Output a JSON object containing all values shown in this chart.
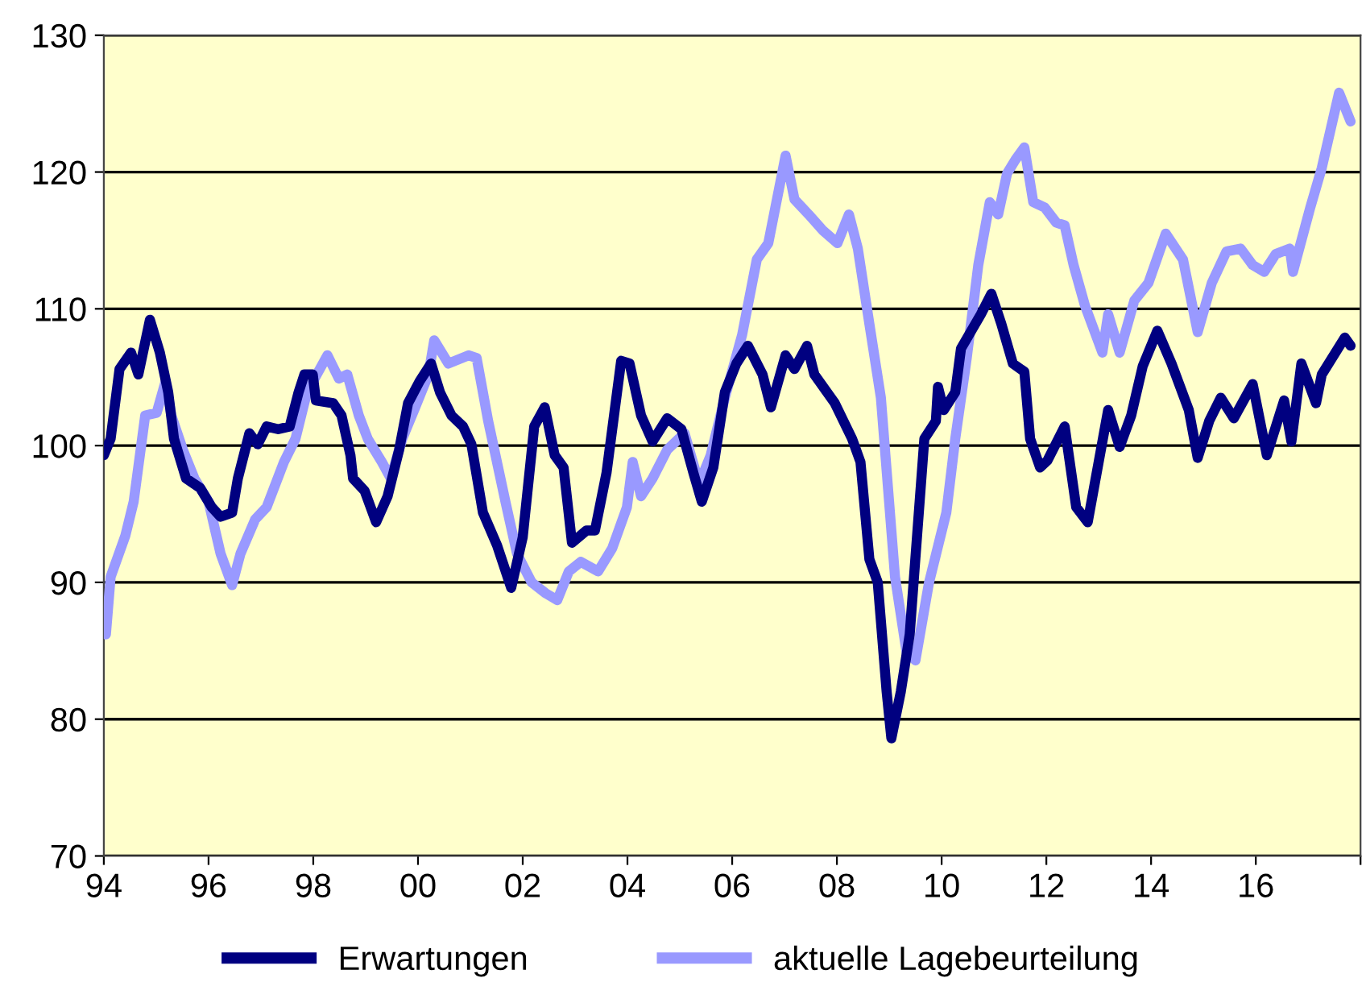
{
  "chart_data": {
    "type": "line",
    "xlim": [
      1994,
      2018
    ],
    "ylim": [
      70,
      130
    ],
    "xticks": [
      {
        "value": 1994,
        "label": "94"
      },
      {
        "value": 1996,
        "label": "96"
      },
      {
        "value": 1998,
        "label": "98"
      },
      {
        "value": 2000,
        "label": "00"
      },
      {
        "value": 2002,
        "label": "02"
      },
      {
        "value": 2004,
        "label": "04"
      },
      {
        "value": 2006,
        "label": "06"
      },
      {
        "value": 2008,
        "label": "08"
      },
      {
        "value": 2010,
        "label": "10"
      },
      {
        "value": 2012,
        "label": "12"
      },
      {
        "value": 2014,
        "label": "14"
      },
      {
        "value": 2016,
        "label": "16"
      },
      {
        "value": 2018,
        "label": null
      }
    ],
    "yticks": [
      70,
      80,
      90,
      100,
      110,
      120,
      130
    ],
    "grid": "y",
    "legend": "bottom",
    "marker": "none",
    "line_style": "solid",
    "series": [
      {
        "name": "Erwartungen",
        "color": "#000080",
        "x": [
          1994.0,
          1994.13,
          1994.3,
          1994.52,
          1994.66,
          1994.88,
          1995.07,
          1995.23,
          1995.34,
          1995.57,
          1995.84,
          1996.06,
          1996.23,
          1996.45,
          1996.56,
          1996.78,
          1996.94,
          1997.11,
          1997.33,
          1997.55,
          1997.72,
          1997.83,
          1997.99,
          1998.05,
          1998.38,
          1998.54,
          1998.71,
          1998.76,
          1998.98,
          1999.2,
          1999.42,
          1999.64,
          1999.81,
          2000.03,
          2000.25,
          2000.42,
          2000.64,
          2000.86,
          2001.02,
          2001.24,
          2001.51,
          2001.78,
          2002.0,
          2002.22,
          2002.42,
          2002.61,
          2002.78,
          2002.94,
          2003.22,
          2003.38,
          2003.6,
          2003.88,
          2004.04,
          2004.26,
          2004.48,
          2004.76,
          2005.03,
          2005.26,
          2005.42,
          2005.64,
          2005.86,
          2006.08,
          2006.3,
          2006.58,
          2006.74,
          2007.02,
          2007.19,
          2007.43,
          2007.57,
          2007.96,
          2008.29,
          2008.45,
          2008.62,
          2008.78,
          2008.95,
          2009.04,
          2009.22,
          2009.39,
          2009.67,
          2009.89,
          2009.93,
          2010.04,
          2010.26,
          2010.37,
          2010.75,
          2010.95,
          2011.14,
          2011.36,
          2011.58,
          2011.69,
          2011.88,
          2012.02,
          2012.35,
          2012.57,
          2012.79,
          2013.18,
          2013.4,
          2013.62,
          2013.84,
          2014.12,
          2014.39,
          2014.72,
          2014.89,
          2015.11,
          2015.33,
          2015.58,
          2015.94,
          2016.21,
          2016.54,
          2016.68,
          2016.87,
          2017.15,
          2017.26,
          2017.7,
          2017.81
        ],
        "values": [
          99.3,
          100.5,
          105.6,
          106.8,
          105.2,
          109.2,
          106.8,
          103.9,
          100.5,
          97.6,
          96.9,
          95.5,
          94.8,
          95.1,
          97.6,
          100.9,
          100.1,
          101.4,
          101.2,
          101.4,
          103.9,
          105.2,
          105.2,
          103.3,
          103.1,
          102.2,
          99.3,
          97.6,
          96.7,
          94.4,
          96.3,
          99.7,
          103.1,
          104.7,
          106.0,
          103.9,
          102.2,
          101.4,
          100.1,
          95.1,
          92.7,
          89.6,
          93.3,
          101.4,
          102.8,
          99.3,
          98.4,
          92.9,
          93.8,
          93.8,
          98.0,
          106.2,
          106.0,
          102.2,
          100.3,
          102.0,
          101.2,
          98.0,
          95.9,
          98.4,
          103.9,
          106.0,
          107.3,
          105.2,
          102.8,
          106.6,
          105.6,
          107.3,
          105.2,
          103.1,
          100.5,
          98.8,
          91.7,
          90.0,
          82.0,
          78.6,
          82.0,
          86.2,
          100.5,
          101.8,
          104.3,
          102.6,
          103.9,
          107.1,
          109.6,
          111.1,
          108.9,
          106.0,
          105.4,
          100.5,
          98.4,
          98.9,
          101.4,
          95.5,
          94.4,
          102.6,
          99.9,
          102.2,
          105.8,
          108.4,
          106.0,
          102.6,
          99.1,
          101.8,
          103.5,
          102.0,
          104.5,
          99.3,
          103.3,
          100.3,
          106.0,
          103.1,
          105.2,
          107.9,
          107.3
        ]
      },
      {
        "name": "aktuelle Lagebeurteilung",
        "color": "#9999ff",
        "x": [
          1994.04,
          1994.13,
          1994.41,
          1994.57,
          1994.79,
          1995.01,
          1995.18,
          1995.29,
          1995.51,
          1995.73,
          1996.0,
          1996.23,
          1996.45,
          1996.61,
          1996.89,
          1997.11,
          1997.44,
          1997.66,
          1997.88,
          1998.27,
          1998.49,
          1998.65,
          1998.87,
          1999.04,
          1999.31,
          1999.48,
          1999.7,
          1999.98,
          2000.2,
          2000.31,
          2000.58,
          2000.97,
          2001.12,
          2001.34,
          2001.67,
          2001.89,
          2002.17,
          2002.44,
          2002.66,
          2002.88,
          2003.11,
          2003.44,
          2003.71,
          2003.99,
          2004.1,
          2004.26,
          2004.48,
          2004.76,
          2005.09,
          2005.37,
          2005.59,
          2005.86,
          2006.19,
          2006.47,
          2006.69,
          2007.02,
          2007.19,
          2007.46,
          2007.74,
          2008.01,
          2008.23,
          2008.4,
          2008.62,
          2008.84,
          2009.11,
          2009.33,
          2009.5,
          2009.76,
          2010.09,
          2010.26,
          2010.48,
          2010.7,
          2010.92,
          2011.08,
          2011.25,
          2011.41,
          2011.58,
          2011.75,
          2011.97,
          2012.19,
          2012.35,
          2012.52,
          2012.74,
          2013.07,
          2013.18,
          2013.4,
          2013.68,
          2013.95,
          2014.28,
          2014.61,
          2014.89,
          2015.16,
          2015.44,
          2015.71,
          2015.94,
          2016.16,
          2016.38,
          2016.65,
          2016.71,
          2017.04,
          2017.26,
          2017.59,
          2017.81
        ],
        "values": [
          86.2,
          90.4,
          93.4,
          95.9,
          102.2,
          102.4,
          104.7,
          102.2,
          99.7,
          97.6,
          95.9,
          92.1,
          89.8,
          92.1,
          94.6,
          95.5,
          98.8,
          100.5,
          103.9,
          106.6,
          104.9,
          105.2,
          102.2,
          100.5,
          98.8,
          97.6,
          100.5,
          103.1,
          105.2,
          107.7,
          106.0,
          106.6,
          106.4,
          101.8,
          95.9,
          92.1,
          90.0,
          89.2,
          88.7,
          90.8,
          91.5,
          90.8,
          92.5,
          95.5,
          98.8,
          96.3,
          97.6,
          99.7,
          100.9,
          97.2,
          99.3,
          103.5,
          108.1,
          113.6,
          114.8,
          121.2,
          118.0,
          116.9,
          115.7,
          114.8,
          116.9,
          114.4,
          108.9,
          103.5,
          90.4,
          84.9,
          84.3,
          90.0,
          95.1,
          100.5,
          106.4,
          113.2,
          117.8,
          116.9,
          119.9,
          120.9,
          121.8,
          117.8,
          117.4,
          116.3,
          116.1,
          113.2,
          110.2,
          106.8,
          109.6,
          106.8,
          110.6,
          111.9,
          115.5,
          113.6,
          108.3,
          111.9,
          114.2,
          114.4,
          113.2,
          112.7,
          114.0,
          114.4,
          112.7,
          117.4,
          120.3,
          125.8,
          123.7
        ]
      }
    ]
  }
}
